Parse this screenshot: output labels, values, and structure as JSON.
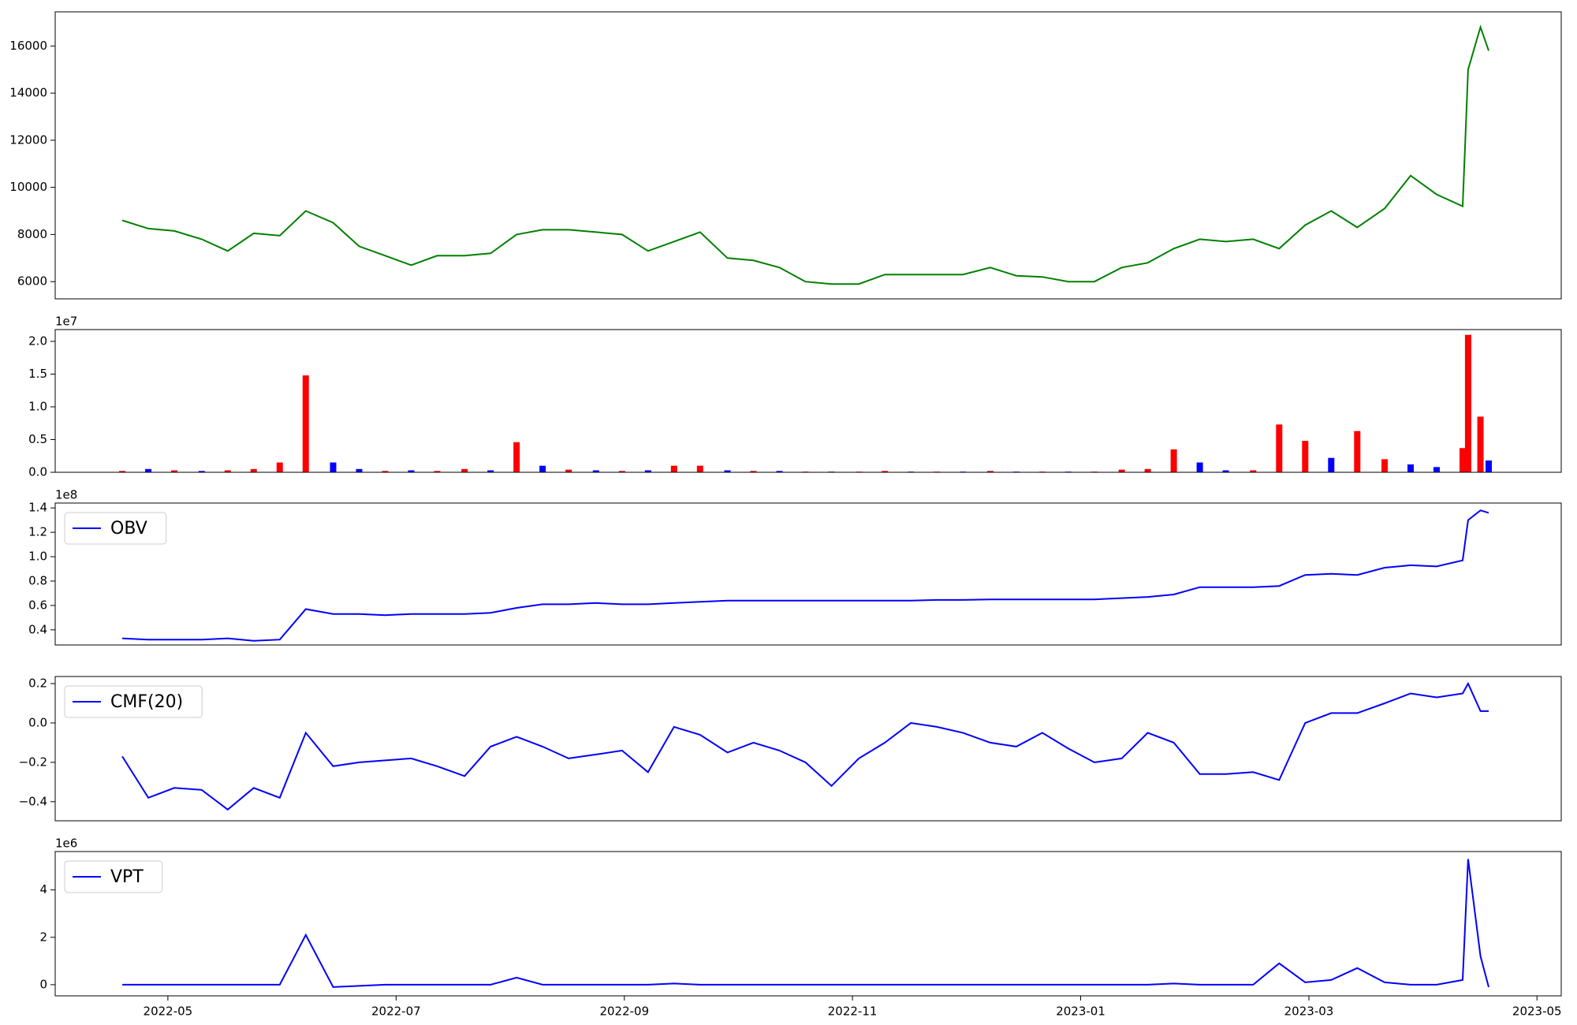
{
  "chart_data": [
    {
      "type": "line",
      "color": "green",
      "x": [
        2022.3,
        2022.319,
        2022.338,
        2022.358,
        2022.377,
        2022.396,
        2022.415,
        2022.434,
        2022.454,
        2022.473,
        2022.492,
        2022.511,
        2022.53,
        2022.55,
        2022.569,
        2022.588,
        2022.607,
        2022.626,
        2022.646,
        2022.665,
        2022.684,
        2022.703,
        2022.722,
        2022.742,
        2022.761,
        2022.78,
        2022.799,
        2022.818,
        2022.838,
        2022.857,
        2022.876,
        2022.895,
        2022.914,
        2022.934,
        2022.953,
        2022.972,
        2022.991,
        2023.01,
        2023.03,
        2023.049,
        2023.068,
        2023.087,
        2023.106,
        2023.126,
        2023.145,
        2023.164,
        2023.183,
        2023.202,
        2023.222,
        2023.241,
        2023.26,
        2023.279,
        2023.283,
        2023.292,
        2023.298
      ],
      "values": [
        8600,
        8250,
        8150,
        7800,
        7300,
        8050,
        7950,
        9000,
        8500,
        7500,
        7100,
        6700,
        7100,
        7100,
        7200,
        8000,
        8200,
        8200,
        8100,
        8000,
        7300,
        7700,
        8100,
        7000,
        6900,
        6600,
        6000,
        5900,
        5900,
        6300,
        6300,
        6300,
        6300,
        6600,
        6250,
        6200,
        6000,
        6000,
        6600,
        6800,
        7400,
        7800,
        7700,
        7800,
        7400,
        8400,
        9000,
        8300,
        9100,
        10500,
        9700,
        9200,
        15000,
        16800,
        15800
      ],
      "xlim": [
        2022.251,
        2023.351
      ],
      "ylim": [
        5270,
        17450
      ],
      "yticks": [
        6000,
        8000,
        10000,
        12000,
        14000,
        16000
      ]
    },
    {
      "type": "bar",
      "offset_label": "1e7",
      "values": [
        0.02,
        0.05,
        0.03,
        0.02,
        0.03,
        0.05,
        0.15,
        1.48,
        0.15,
        0.05,
        0.02,
        0.03,
        0.02,
        0.05,
        0.03,
        0.46,
        0.1,
        0.04,
        0.03,
        0.02,
        0.03,
        0.1,
        0.1,
        0.03,
        0.02,
        0.02,
        0.01,
        0.01,
        0.01,
        0.02,
        0.01,
        0.01,
        0.01,
        0.02,
        0.01,
        0.01,
        0.01,
        0.01,
        0.04,
        0.05,
        0.35,
        0.15,
        0.03,
        0.03,
        0.73,
        0.48,
        0.22,
        0.63,
        0.2,
        0.12,
        0.08,
        0.37,
        2.1,
        0.85,
        0.18
      ],
      "colors": [
        "red",
        "blue",
        "red",
        "blue",
        "red",
        "red",
        "red",
        "red",
        "blue",
        "blue",
        "red",
        "blue",
        "red",
        "red",
        "blue",
        "red",
        "blue",
        "red",
        "blue",
        "red",
        "blue",
        "red",
        "red",
        "blue",
        "red",
        "blue",
        "red",
        "blue",
        "red",
        "red",
        "blue",
        "red",
        "blue",
        "red",
        "blue",
        "red",
        "blue",
        "red",
        "red",
        "red",
        "red",
        "blue",
        "blue",
        "red",
        "red",
        "red",
        "blue",
        "red",
        "red",
        "blue",
        "blue",
        "red",
        "red",
        "red",
        "blue"
      ],
      "ylim": [
        0,
        2.18
      ],
      "yticks": [
        {
          "value": 0,
          "label": "0.0"
        },
        {
          "value": 0.5,
          "label": "0.5"
        },
        {
          "value": 1,
          "label": "1.0"
        },
        {
          "value": 1.5,
          "label": "1.5"
        },
        {
          "value": 2,
          "label": "2.0"
        }
      ]
    },
    {
      "type": "line",
      "offset_label": "1e8",
      "series": [
        {
          "name": "OBV",
          "color": "blue",
          "values": [
            0.33,
            0.32,
            0.32,
            0.32,
            0.33,
            0.31,
            0.32,
            0.57,
            0.53,
            0.53,
            0.52,
            0.53,
            0.53,
            0.53,
            0.54,
            0.58,
            0.61,
            0.61,
            0.62,
            0.61,
            0.61,
            0.62,
            0.63,
            0.64,
            0.64,
            0.64,
            0.64,
            0.64,
            0.64,
            0.64,
            0.64,
            0.645,
            0.645,
            0.65,
            0.65,
            0.65,
            0.65,
            0.65,
            0.66,
            0.67,
            0.69,
            0.75,
            0.75,
            0.75,
            0.76,
            0.85,
            0.86,
            0.85,
            0.91,
            0.93,
            0.92,
            0.97,
            1.3,
            1.38,
            1.36
          ]
        }
      ],
      "ylim": [
        0.276,
        1.44
      ],
      "yticks": [
        0.4,
        0.6,
        0.8,
        {
          "value": 1,
          "label": "1.0"
        },
        1.2,
        1.4
      ]
    },
    {
      "type": "line",
      "series": [
        {
          "name": "CMF(20)",
          "color": "blue",
          "values": [
            -0.17,
            -0.38,
            -0.33,
            -0.34,
            -0.44,
            -0.33,
            -0.38,
            -0.05,
            -0.22,
            -0.2,
            -0.19,
            -0.18,
            -0.22,
            -0.27,
            -0.12,
            -0.07,
            -0.12,
            -0.18,
            -0.16,
            -0.14,
            -0.25,
            -0.02,
            -0.06,
            -0.15,
            -0.1,
            -0.14,
            -0.2,
            -0.32,
            -0.18,
            -0.1,
            0.0,
            -0.02,
            -0.05,
            -0.1,
            -0.12,
            -0.05,
            -0.13,
            -0.2,
            -0.18,
            -0.05,
            -0.1,
            -0.26,
            -0.26,
            -0.25,
            -0.29,
            0.0,
            0.05,
            0.05,
            0.1,
            0.15,
            0.13,
            0.15,
            0.2,
            0.06,
            0.06
          ]
        }
      ],
      "ylim": [
        -0.497,
        0.236
      ],
      "yticks": [
        {
          "value": -0.4,
          "label": "−0.4"
        },
        {
          "value": -0.2,
          "label": "−0.2"
        },
        {
          "value": 0,
          "label": "0.0"
        },
        0.2
      ]
    },
    {
      "type": "line",
      "offset_label": "1e6",
      "series": [
        {
          "name": "VPT",
          "color": "blue",
          "values": [
            0,
            0,
            0,
            0,
            0,
            0,
            0,
            2.1,
            -0.1,
            -0.05,
            0,
            0,
            0,
            0,
            0,
            0.3,
            0,
            0,
            0,
            0,
            0,
            0.05,
            0,
            0,
            0,
            0,
            0,
            0,
            0,
            0,
            0,
            0,
            0,
            0,
            0,
            0,
            0,
            0,
            0,
            0,
            0.05,
            0,
            0,
            0,
            0.9,
            0.1,
            0.2,
            0.7,
            0.1,
            0,
            0,
            0.2,
            5.3,
            1.2,
            -0.1
          ]
        }
      ],
      "ylim": [
        -0.47,
        5.62
      ],
      "yticks": [
        0,
        2,
        4
      ],
      "xticks": [
        {
          "value": 2022.3333,
          "label": "2022-05"
        },
        {
          "value": 2022.5,
          "label": "2022-07"
        },
        {
          "value": 2022.6667,
          "label": "2022-09"
        },
        {
          "value": 2022.8333,
          "label": "2022-11"
        },
        {
          "value": 2023.0,
          "label": "2023-01"
        },
        {
          "value": 2023.1667,
          "label": "2023-03"
        },
        {
          "value": 2023.3333,
          "label": "2023-05"
        }
      ]
    }
  ]
}
